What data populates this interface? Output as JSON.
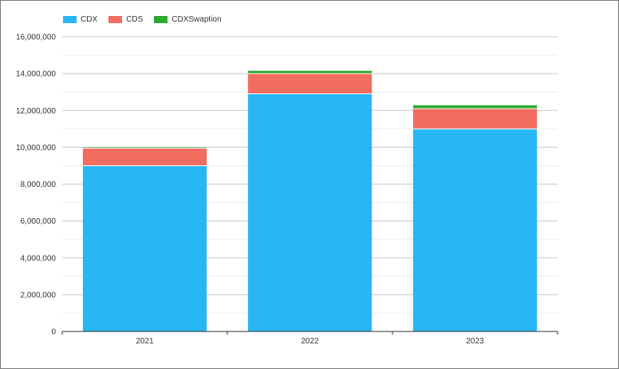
{
  "chart_data": {
    "type": "bar",
    "stacked": true,
    "categories": [
      "2021",
      "2022",
      "2023"
    ],
    "series": [
      {
        "name": "CDX",
        "color": "#29b6f6",
        "values": [
          9000000,
          12900000,
          11000000
        ]
      },
      {
        "name": "CDS",
        "color": "#f26c5f",
        "values": [
          950000,
          1100000,
          1100000
        ]
      },
      {
        "name": "CDXSwaption",
        "color": "#2ea82e",
        "values": [
          50000,
          150000,
          180000
        ]
      }
    ],
    "ylim": [
      0,
      16000000
    ],
    "yticks": [
      "0",
      "2,000,000",
      "4,000,000",
      "6,000,000",
      "8,000,000",
      "10,000,000",
      "12,000,000",
      "14,000,000",
      "16,000,000"
    ],
    "ytick_values": [
      0,
      2000000,
      4000000,
      6000000,
      8000000,
      10000000,
      12000000,
      14000000,
      16000000
    ],
    "title": "",
    "xlabel": "",
    "ylabel": "",
    "grid": true,
    "legend_position": "top-left"
  }
}
